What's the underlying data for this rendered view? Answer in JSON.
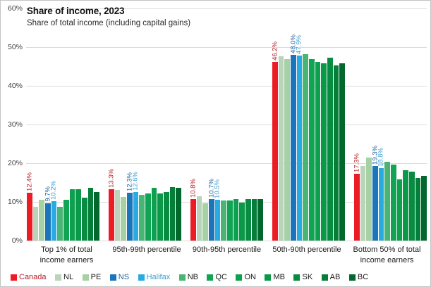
{
  "frame": {
    "background": "#ffffff",
    "border_color": "#c4c4c4",
    "gridline_color": "#dcdcdc"
  },
  "chart_data": {
    "type": "bar",
    "title": "Share of income, 2023",
    "subtitle": "Share of total income (including capital gains)",
    "xlabel": "",
    "ylabel": "",
    "ylim": [
      0,
      60
    ],
    "ytick_labels": [
      "0%",
      "10%",
      "20%",
      "30%",
      "40%",
      "50%",
      "60%"
    ],
    "ytick_values": [
      0,
      10,
      20,
      30,
      40,
      50,
      60
    ],
    "grid": "horizontal",
    "legend_position": "bottom",
    "categories": [
      "Top 1% of total income earners",
      "95th-99th percentile",
      "90th-95th percentile",
      "50th-90th percentile",
      "Bottom 50% of total income earners"
    ],
    "category_lines": [
      [
        "Top 1% of total",
        "income earners"
      ],
      [
        "95th-99th percentile"
      ],
      [
        "90th-95th percentile"
      ],
      [
        "50th-90th percentile"
      ],
      [
        "Bottom 50% of total",
        "income earners"
      ]
    ],
    "series": [
      {
        "name": "Canada",
        "color": "#ed1c24",
        "text_color": "#b42025",
        "values": [
          12.4,
          13.3,
          10.8,
          46.2,
          17.3
        ],
        "labels": [
          "12.4%",
          "13.3%",
          "10.8%",
          "46.2%",
          "17.3%"
        ]
      },
      {
        "name": "NL",
        "color": "#bad3ba",
        "values": [
          8.7,
          13.1,
          11.5,
          47.6,
          19.3
        ]
      },
      {
        "name": "PE",
        "color": "#a6d1a4",
        "values": [
          10.6,
          11.2,
          9.7,
          46.9,
          21.5
        ]
      },
      {
        "name": "NS",
        "color": "#1b75bb",
        "text_color": "#24639e",
        "values": [
          9.7,
          12.3,
          10.7,
          48.0,
          19.3
        ],
        "labels": [
          "9.7%",
          "12.3%",
          "10.7%",
          "48.0%",
          "19.3%"
        ]
      },
      {
        "name": "Halifax",
        "color": "#29abe2",
        "text_color": "#3aa0d6",
        "values": [
          10.2,
          12.6,
          10.5,
          47.9,
          18.8
        ],
        "labels": [
          "10.2%",
          "12.6%",
          "10.5%",
          "47.9%",
          "18.8%"
        ]
      },
      {
        "name": "NB",
        "color": "#49b575",
        "values": [
          8.8,
          11.8,
          10.4,
          48.2,
          20.3
        ]
      },
      {
        "name": "QC",
        "color": "#12a455",
        "values": [
          10.5,
          12.2,
          10.3,
          46.9,
          19.7
        ]
      },
      {
        "name": "ON",
        "color": "#0da04f",
        "values": [
          13.2,
          13.6,
          10.8,
          46.1,
          15.9
        ]
      },
      {
        "name": "MB",
        "color": "#0a9849",
        "values": [
          13.3,
          12.1,
          9.9,
          45.8,
          18.2
        ]
      },
      {
        "name": "SK",
        "color": "#078c42",
        "values": [
          11.1,
          12.6,
          10.7,
          47.2,
          17.9
        ]
      },
      {
        "name": "AB",
        "color": "#047e39",
        "values": [
          13.6,
          13.9,
          10.8,
          45.3,
          16.2
        ]
      },
      {
        "name": "BC",
        "color": "#03682e",
        "values": [
          12.6,
          13.7,
          10.8,
          45.9,
          16.7
        ]
      }
    ]
  }
}
